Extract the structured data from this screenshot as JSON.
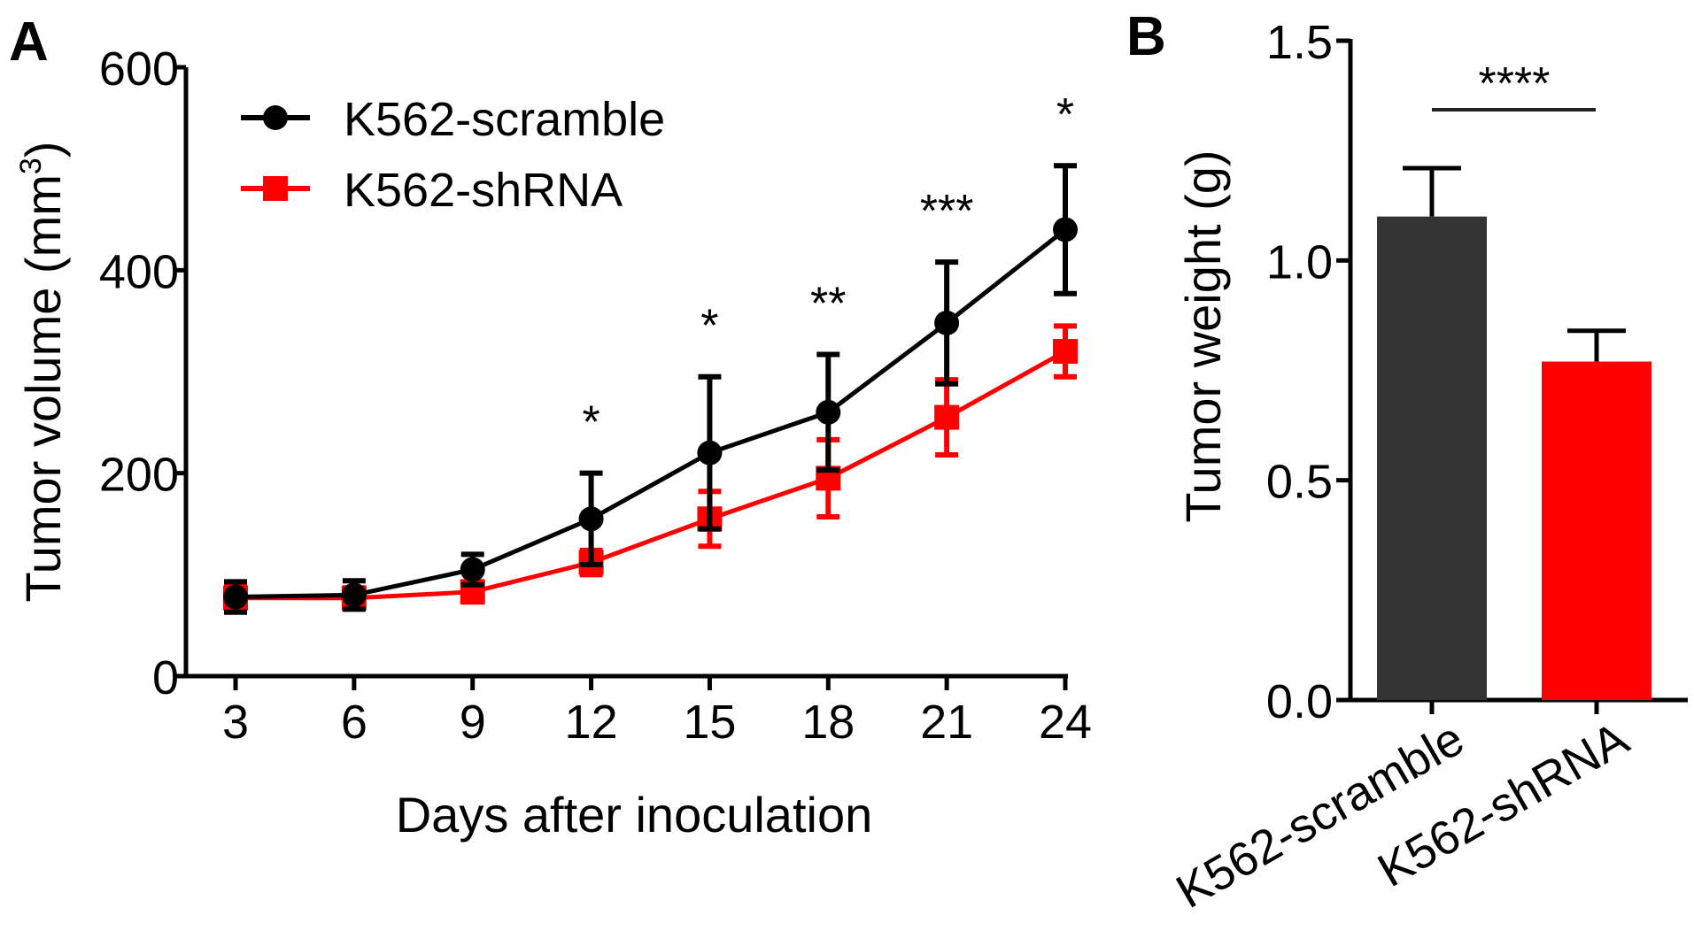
{
  "chart_data": [
    {
      "panel": "A",
      "type": "line",
      "xlabel": "Days after inoculation",
      "ylabel": "Tumor volume (mm",
      "ylabel_sup": "3",
      "ylabel_end": ")",
      "x": [
        3,
        6,
        9,
        12,
        15,
        18,
        21,
        24
      ],
      "xticks": [
        "3",
        "6",
        "9",
        "12",
        "15",
        "18",
        "21",
        "24"
      ],
      "ylim": [
        0,
        600
      ],
      "yticks": [
        "0",
        "200",
        "400",
        "600"
      ],
      "ytick_values": [
        0,
        200,
        400,
        600
      ],
      "legend_placement": "top-left",
      "series": [
        {
          "name": "K562-scramble",
          "color": "#000000",
          "marker": "circle",
          "values": [
            78,
            80,
            105,
            155,
            220,
            260,
            348,
            440
          ],
          "errors": [
            15,
            14,
            15,
            45,
            75,
            57,
            60,
            63
          ]
        },
        {
          "name": "K562-shRNA",
          "color": "#ff0000",
          "marker": "square",
          "values": [
            77,
            77,
            83,
            112,
            155,
            195,
            255,
            320
          ],
          "errors": [
            12,
            10,
            10,
            12,
            27,
            38,
            37,
            25
          ]
        }
      ],
      "annotations": [
        "",
        "",
        "",
        "*",
        "*",
        "**",
        "***",
        "*"
      ]
    },
    {
      "panel": "B",
      "type": "bar",
      "ylabel": "Tumor weight (g)",
      "categories": [
        "K562-scramble",
        "K562-shRNA"
      ],
      "values": [
        1.1,
        0.77
      ],
      "errors": [
        0.11,
        0.07
      ],
      "colors": [
        "#333333",
        "#ff0000"
      ],
      "ylim": [
        0,
        1.5
      ],
      "yticks": [
        "0.0",
        "0.5",
        "1.0",
        "1.5"
      ],
      "ytick_values": [
        0,
        0.5,
        1.0,
        1.5
      ],
      "significance": "****"
    }
  ]
}
